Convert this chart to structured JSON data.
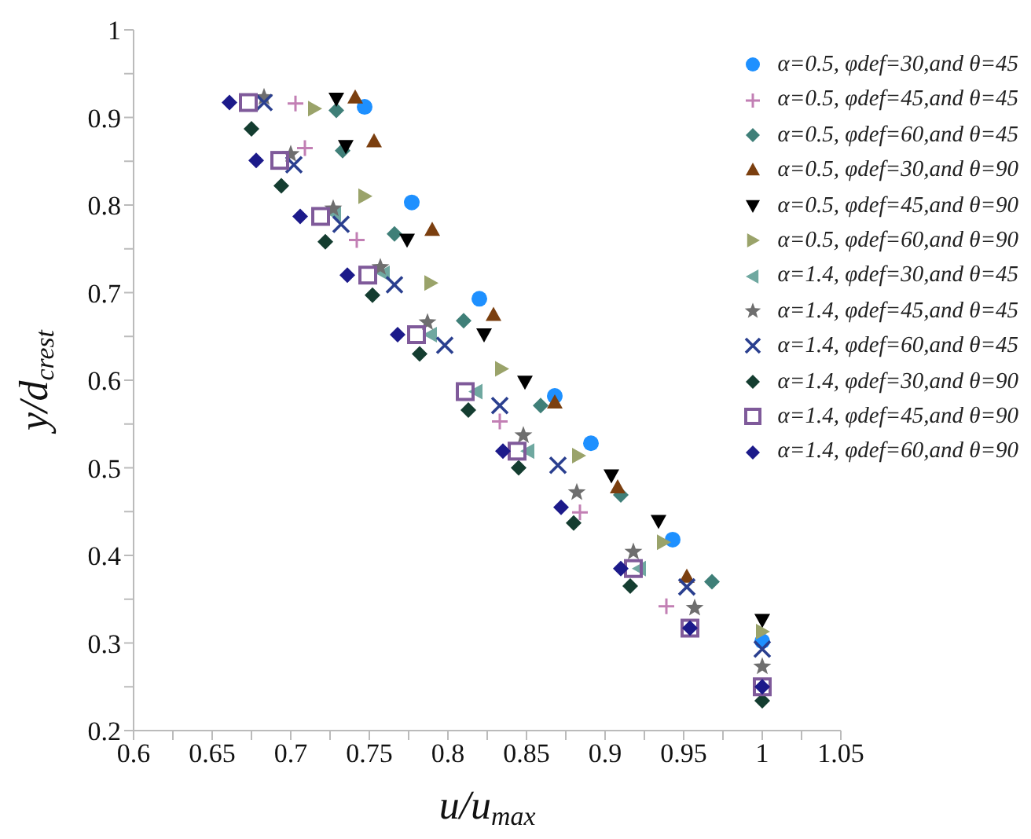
{
  "chart_data": {
    "type": "scatter",
    "xlabel": "u/u$_{max}$",
    "ylabel": "y/d$_{crest}$",
    "xlim": [
      0.6,
      1.05
    ],
    "ylim": [
      0.2,
      1
    ],
    "xticks": [
      0.6,
      {
        "value": 0.625,
        "label": null
      },
      0.65,
      {
        "value": 0.675,
        "label": null
      },
      0.7,
      {
        "value": 0.725,
        "label": null
      },
      0.75,
      {
        "value": 0.775,
        "label": null
      },
      0.8,
      {
        "value": 0.825,
        "label": null
      },
      0.85,
      {
        "value": 0.875,
        "label": null
      },
      0.9,
      {
        "value": 0.925,
        "label": null
      },
      0.95,
      {
        "value": 0.975,
        "label": null
      },
      1,
      {
        "value": 1.025,
        "label": null
      },
      1.05
    ],
    "yticks": [
      0.2,
      {
        "value": 0.25,
        "label": null
      },
      0.3,
      {
        "value": 0.35,
        "label": null
      },
      0.4,
      {
        "value": 0.45,
        "label": null
      },
      0.5,
      {
        "value": 0.55,
        "label": null
      },
      0.6,
      {
        "value": 0.65,
        "label": null
      },
      0.7,
      {
        "value": 0.75,
        "label": null
      },
      0.8,
      {
        "value": 0.85,
        "label": null
      },
      0.9,
      {
        "value": 0.95,
        "label": null
      },
      1
    ],
    "grid": false,
    "legend": "top right",
    "series": [
      {
        "name": "α=0.5, φdef=30,and θ=45",
        "color": "#1e90ff",
        "marker": "circle",
        "x": [
          0.747,
          0.777,
          0.82,
          0.868,
          0.891,
          0.943,
          1.0
        ],
        "values": [
          0.912,
          0.803,
          0.693,
          0.582,
          0.528,
          0.418,
          0.302
        ]
      },
      {
        "name": "α=0.5, φdef=45,and θ=45",
        "color": "#c27fb4",
        "marker": "plus",
        "x": [
          0.703,
          0.709,
          0.742,
          0.833,
          0.884,
          0.939
        ],
        "values": [
          0.916,
          0.865,
          0.76,
          0.553,
          0.449,
          0.342
        ]
      },
      {
        "name": "α=0.5, φdef=60,and θ=45",
        "color": "#3f7f78",
        "marker": "diamond",
        "x": [
          0.729,
          0.733,
          0.766,
          0.81,
          0.859,
          0.91,
          0.968
        ],
        "values": [
          0.908,
          0.862,
          0.767,
          0.668,
          0.571,
          0.469,
          0.37
        ]
      },
      {
        "name": "α=0.5, φdef=30,and θ=90",
        "color": "#7b3f0f",
        "marker": "triangle",
        "x": [
          0.741,
          0.753,
          0.79,
          0.829,
          0.868,
          0.908,
          0.952
        ],
        "values": [
          0.923,
          0.873,
          0.772,
          0.675,
          0.575,
          0.478,
          0.376
        ]
      },
      {
        "name": "α=0.5, φdef=45,and θ=90",
        "color": "#000000",
        "marker": "triangle-down",
        "x": [
          0.729,
          0.735,
          0.774,
          0.823,
          0.849,
          0.904,
          0.934,
          1.0
        ],
        "values": [
          0.921,
          0.867,
          0.76,
          0.652,
          0.598,
          0.491,
          0.439,
          0.326
        ]
      },
      {
        "name": "α=0.5, φdef=60,and θ=90",
        "color": "#9aa36a",
        "marker": "triangle-right",
        "x": [
          0.715,
          0.747,
          0.789,
          0.834,
          0.883,
          0.937,
          1.0
        ],
        "values": [
          0.91,
          0.81,
          0.711,
          0.613,
          0.514,
          0.415,
          0.313
        ]
      },
      {
        "name": "α=1.4, φdef=30,and θ=45",
        "color": "#6fa8a0",
        "marker": "triangle-left",
        "x": [
          0.728,
          0.759,
          0.789,
          0.818,
          0.851,
          0.922
        ],
        "values": [
          0.79,
          0.722,
          0.652,
          0.587,
          0.519,
          0.385
        ]
      },
      {
        "name": "α=1.4, φdef=45,and θ=45",
        "color": "#6e6e6e",
        "marker": "star",
        "x": [
          0.683,
          0.7,
          0.727,
          0.757,
          0.787,
          0.848,
          0.882,
          0.918,
          0.957,
          1.0
        ],
        "values": [
          0.923,
          0.858,
          0.796,
          0.729,
          0.666,
          0.537,
          0.472,
          0.404,
          0.34,
          0.273
        ]
      },
      {
        "name": "α=1.4, φdef=60,and θ=45",
        "color": "#2a3f8f",
        "marker": "cross",
        "x": [
          0.683,
          0.702,
          0.732,
          0.766,
          0.798,
          0.833,
          0.87,
          0.952,
          1.0
        ],
        "values": [
          0.917,
          0.846,
          0.778,
          0.709,
          0.64,
          0.571,
          0.503,
          0.364,
          0.293
        ]
      },
      {
        "name": "α=1.4, φdef=30,and θ=90",
        "color": "#143d30",
        "marker": "diamond",
        "x": [
          0.675,
          0.694,
          0.722,
          0.752,
          0.782,
          0.813,
          0.845,
          0.88,
          0.916,
          1.0
        ],
        "values": [
          0.887,
          0.822,
          0.758,
          0.697,
          0.63,
          0.566,
          0.5,
          0.437,
          0.365,
          0.234
        ]
      },
      {
        "name": "α=1.4, φdef=45,and θ=90",
        "color": "#7f5a9a",
        "marker": "square",
        "x": [
          0.673,
          0.693,
          0.719,
          0.749,
          0.78,
          0.811,
          0.844,
          0.918,
          0.954,
          1.0
        ],
        "values": [
          0.917,
          0.851,
          0.787,
          0.72,
          0.652,
          0.587,
          0.519,
          0.385,
          0.317,
          0.25
        ]
      },
      {
        "name": "α=1.4, φdef=60,and θ=90",
        "color": "#1c1a8a",
        "marker": "diamond",
        "x": [
          0.661,
          0.678,
          0.706,
          0.736,
          0.768,
          0.835,
          0.872,
          0.91,
          0.954,
          1.0
        ],
        "values": [
          0.917,
          0.851,
          0.787,
          0.72,
          0.652,
          0.519,
          0.455,
          0.385,
          0.317,
          0.25
        ]
      }
    ]
  }
}
